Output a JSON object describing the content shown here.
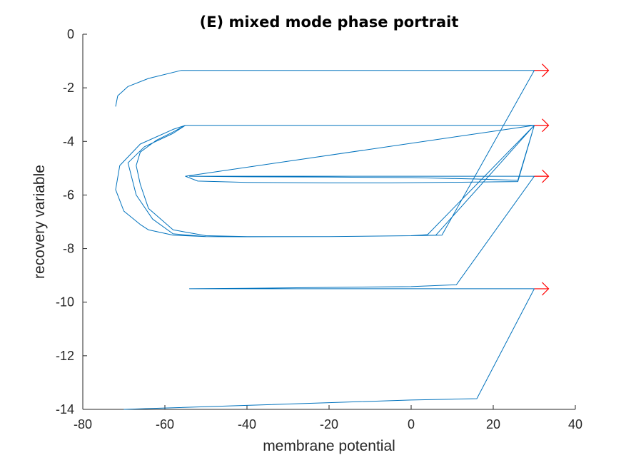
{
  "chart_data": {
    "type": "line",
    "title": "(E) mixed mode phase portrait",
    "xlabel": "membrane potential",
    "ylabel": "recovery variable",
    "xlim": [
      -80,
      40
    ],
    "ylim": [
      -14,
      0
    ],
    "xticks": [
      "-80",
      "-60",
      "-40",
      "-20",
      "0",
      "20",
      "40"
    ],
    "yticks": [
      "0",
      "-2",
      "-4",
      "-6",
      "-8",
      "-10",
      "-12",
      "-14"
    ],
    "grid": false,
    "legend": "none",
    "colors": {
      "trajectory": "#0072bd",
      "spike_marker": "#ff0000",
      "axis": "#262626"
    },
    "series": [
      {
        "x": [
          -70,
          -60,
          -40,
          -20,
          0,
          10,
          16,
          30,
          -54,
          -40,
          -20,
          0,
          11,
          30,
          -54,
          -40,
          -20,
          0,
          15,
          26,
          30,
          -55,
          -52,
          -40,
          -20,
          -5,
          26,
          30,
          -55,
          -58,
          -62,
          -66,
          -67,
          -66,
          -64,
          -58,
          -50,
          -40,
          -20,
          0,
          4,
          30,
          -55,
          -58,
          -65,
          -69,
          -67,
          -63,
          -58,
          -50,
          -40,
          -20,
          0,
          6,
          30,
          -55,
          -58,
          -66,
          -71,
          -72,
          -70,
          -66,
          -64,
          -58,
          -50,
          -40,
          -20,
          0,
          7.5,
          30,
          -56,
          -64,
          -69,
          -71.5,
          -72
        ],
        "y": [
          -14,
          -13.95,
          -13.85,
          -13.75,
          -13.65,
          -13.62,
          -13.6,
          -9.5,
          -9.5,
          -9.48,
          -9.45,
          -9.42,
          -9.35,
          -5.3,
          -5.3,
          -5.32,
          -5.33,
          -5.35,
          -5.4,
          -5.45,
          -3.4,
          -5.3,
          -5.48,
          -5.53,
          -5.55,
          -5.55,
          -5.5,
          -3.4,
          -3.4,
          -3.65,
          -3.95,
          -4.4,
          -4.9,
          -5.6,
          -6.5,
          -7.3,
          -7.52,
          -7.55,
          -7.55,
          -7.52,
          -7.48,
          -3.4,
          -3.4,
          -3.7,
          -4.2,
          -4.8,
          -6.0,
          -6.9,
          -7.45,
          -7.55,
          -7.56,
          -7.55,
          -7.52,
          -7.5,
          -3.4,
          -3.4,
          -3.55,
          -4.1,
          -4.9,
          -5.8,
          -6.6,
          -7.1,
          -7.3,
          -7.5,
          -7.55,
          -7.56,
          -7.55,
          -7.52,
          -7.5,
          -1.35,
          -1.35,
          -1.65,
          -1.95,
          -2.3,
          -2.7
        ]
      }
    ],
    "spike_arrows": [
      {
        "x": 30,
        "y": -1.35
      },
      {
        "x": 30,
        "y": -3.4
      },
      {
        "x": 30,
        "y": -5.3
      },
      {
        "x": 30,
        "y": -9.5
      }
    ]
  }
}
